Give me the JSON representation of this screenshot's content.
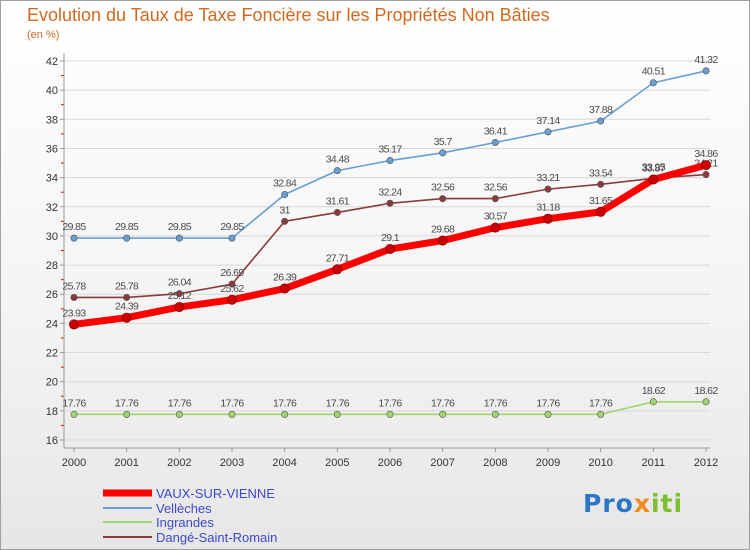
{
  "header": {
    "title": "Evolution du Taux de Taxe Foncière sur les Propriétés Non Bâties",
    "unit": "(en %)"
  },
  "logo": {
    "part1": "Pro",
    "part2": "x",
    "part3": "iti"
  },
  "chart_data": {
    "type": "line",
    "x": [
      "2000",
      "2001",
      "2002",
      "2003",
      "2004",
      "2005",
      "2006",
      "2007",
      "2008",
      "2009",
      "2010",
      "2011",
      "2012"
    ],
    "ylim": [
      16,
      42
    ],
    "yticks": [
      16,
      18,
      20,
      22,
      24,
      26,
      28,
      30,
      32,
      34,
      36,
      38,
      40,
      42
    ],
    "grid": "horizontal",
    "legend_position": "bottom-left",
    "series": [
      {
        "name": "VAUX-SUR-VIENNE",
        "color": "#ff0000",
        "values": [
          23.93,
          24.39,
          25.12,
          25.62,
          26.39,
          27.71,
          29.1,
          29.68,
          30.57,
          31.18,
          31.65,
          33.87,
          34.86
        ],
        "labels": [
          "23.93",
          "24.39",
          "25.12",
          "25.62",
          "26.39",
          "27.71",
          "29.1",
          "29.68",
          "30.57",
          "31.18",
          "31.65",
          "33.87",
          "34.86"
        ]
      },
      {
        "name": "Vellèches",
        "color": "#6a9fd4",
        "values": [
          29.85,
          29.85,
          29.85,
          29.85,
          32.84,
          34.48,
          35.17,
          35.7,
          36.41,
          37.14,
          37.88,
          40.51,
          41.32
        ],
        "labels": [
          "29.85",
          "29.85",
          "29.85",
          "29.85",
          "32.84",
          "34.48",
          "35.17",
          "35.7",
          "36.41",
          "37.14",
          "37.88",
          "40.51",
          "41.32"
        ]
      },
      {
        "name": "Ingrandes",
        "color": "#9fd56c",
        "values": [
          17.76,
          17.76,
          17.76,
          17.76,
          17.76,
          17.76,
          17.76,
          17.76,
          17.76,
          17.76,
          17.76,
          18.62,
          18.62
        ],
        "labels": [
          "17.76",
          "17.76",
          "17.76",
          "17.76",
          "17.76",
          "17.76",
          "17.76",
          "17.76",
          "17.76",
          "17.76",
          "17.76",
          "18.62",
          "18.62"
        ]
      },
      {
        "name": "Dangé-Saint-Romain",
        "color": "#8b3a3a",
        "values": [
          25.78,
          25.78,
          26.04,
          26.69,
          31,
          31.61,
          32.24,
          32.56,
          32.56,
          33.21,
          33.54,
          33.95,
          34.21
        ],
        "labels": [
          "25.78",
          "25.78",
          "26.04",
          "26.69",
          "31",
          "31.61",
          "32.24",
          "32.56",
          "32.56",
          "33.21",
          "33.54",
          "33.95",
          "34.21"
        ]
      }
    ]
  }
}
